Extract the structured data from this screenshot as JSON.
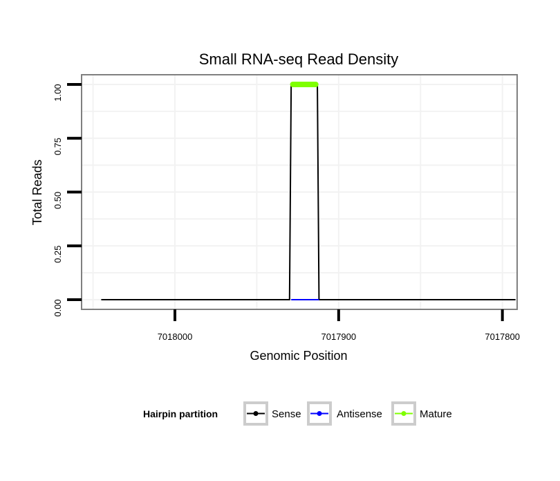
{
  "chart_data": {
    "type": "line",
    "title": "Small RNA-seq Read Density",
    "xlabel": "Genomic Position",
    "ylabel": "Total Reads",
    "x_reversed": true,
    "xlim": [
      7018057,
      7017791
    ],
    "ylim": [
      -0.045,
      1.045
    ],
    "x_ticks": [
      7018000,
      7017900,
      7017800
    ],
    "x_tick_labels": [
      "7018000",
      "7017900",
      "7017800"
    ],
    "y_ticks": [
      0,
      0.25,
      0.5,
      0.75,
      1.0
    ],
    "y_tick_labels": [
      "0.00",
      "0.25",
      "0.50",
      "0.75",
      "1.00"
    ],
    "grid": true,
    "series": [
      {
        "name": "Sense",
        "color": "#000000",
        "x": [
          7018045,
          7017930,
          7017929,
          7017913,
          7017912,
          7017792
        ],
        "y": [
          0,
          0,
          1,
          1,
          0,
          0
        ]
      },
      {
        "name": "Antisense",
        "color": "#0000ff",
        "x": [
          7017929,
          7017912
        ],
        "y": [
          0,
          0
        ]
      },
      {
        "name": "Mature",
        "color": "#7fff00",
        "x": [
          7017928,
          7017914
        ],
        "y": [
          1,
          1
        ]
      }
    ],
    "legend": {
      "title": "Hairpin partition",
      "position": "bottom",
      "items": [
        "Sense",
        "Antisense",
        "Mature"
      ]
    }
  }
}
